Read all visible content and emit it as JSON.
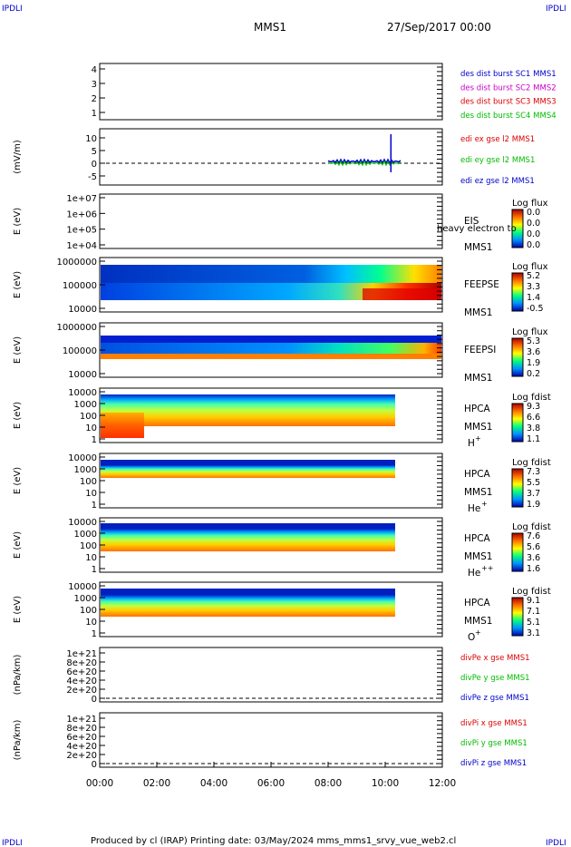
{
  "corner_marks": {
    "tl": "IPDLI",
    "tr": "IPDLI",
    "bl": "IPDLI",
    "br": "IPDLI"
  },
  "header": {
    "spacecraft": "MMS1",
    "datetime": "27/Sep/2017 00:00"
  },
  "footer": {
    "text": "Produced by cl (IRAP)   Printing date: 03/May/2024   mms_mms1_srvy_vue_web2.cl"
  },
  "colors": {
    "blue": "#0000cc",
    "magenta": "#cc00cc",
    "red": "#dd0000",
    "green": "#00bb00"
  },
  "chart_data": [
    {
      "type": "line",
      "panel": "des",
      "ylim": [
        0.5,
        4.5
      ],
      "yticks": [
        "1",
        "2",
        "3",
        "4"
      ],
      "legend": [
        {
          "text": "des dist burst SC1 MMS1",
          "color": "blue"
        },
        {
          "text": "des dist burst SC2 MMS2",
          "color": "magenta"
        },
        {
          "text": "des dist burst SC3 MMS3",
          "color": "red"
        },
        {
          "text": "des dist burst SC4 MMS4",
          "color": "green"
        }
      ]
    },
    {
      "type": "line",
      "panel": "edi",
      "ylabel": "(mV/m)",
      "ylim": [
        -7,
        13
      ],
      "yticks": [
        "10",
        "5",
        "0",
        "-5"
      ],
      "legend": [
        {
          "text": "edi ex gse l2 MMS1",
          "color": "red"
        },
        {
          "text": "edi ey gse l2 MMS1",
          "color": "green"
        },
        {
          "text": "edi ez gse l2 MMS1",
          "color": "blue"
        }
      ],
      "data_span_hours": [
        8.0,
        10.6
      ]
    },
    {
      "type": "heatmap",
      "panel": "eis",
      "ylabel": "E (eV)",
      "yticks": [
        "1e+07",
        "1e+06",
        "1e+05",
        "1e+04"
      ],
      "instrument": "EIS",
      "instrument_extra": "heavy electron to",
      "sc": "MMS1",
      "cbar_title": "Log flux",
      "cbar_ticks": [
        "0.0",
        "0.0",
        "0.0",
        "0.0"
      ]
    },
    {
      "type": "heatmap",
      "panel": "feepse",
      "ylabel": "E (eV)",
      "yticks": [
        "1000000",
        "100000",
        "10000"
      ],
      "instrument": "FEEPSE",
      "sc": "MMS1",
      "cbar_title": "Log flux",
      "cbar_ticks": [
        "5.2",
        "3.3",
        "1.4",
        "-0.5"
      ]
    },
    {
      "type": "heatmap",
      "panel": "feepsi",
      "ylabel": "E (eV)",
      "yticks": [
        "1000000",
        "100000",
        "10000"
      ],
      "instrument": "FEEPSI",
      "sc": "MMS1",
      "cbar_title": "Log flux",
      "cbar_ticks": [
        "5.3",
        "3.6",
        "1.9",
        "0.2"
      ]
    },
    {
      "type": "heatmap",
      "panel": "hpca_h",
      "ylabel": "E (eV)",
      "yticks": [
        "10000",
        "1000",
        "100",
        "10",
        "1"
      ],
      "instrument": "HPCA",
      "sc": "MMS1",
      "species": "H",
      "charge": "+",
      "cbar_title": "Log fdist",
      "cbar_ticks": [
        "9.3",
        "6.6",
        "3.8",
        "1.1"
      ],
      "data_span_hours": [
        0,
        10.4
      ]
    },
    {
      "type": "heatmap",
      "panel": "hpca_he",
      "ylabel": "E (eV)",
      "yticks": [
        "10000",
        "1000",
        "100",
        "10",
        "1"
      ],
      "instrument": "HPCA",
      "sc": "MMS1",
      "species": "He",
      "charge": "+",
      "cbar_title": "Log fdist",
      "cbar_ticks": [
        "7.3",
        "5.5",
        "3.7",
        "1.9"
      ],
      "data_span_hours": [
        0,
        10.4
      ]
    },
    {
      "type": "heatmap",
      "panel": "hpca_hepp",
      "ylabel": "E (eV)",
      "yticks": [
        "10000",
        "1000",
        "100",
        "10",
        "1"
      ],
      "instrument": "HPCA",
      "sc": "MMS1",
      "species": "He",
      "charge": "++",
      "cbar_title": "Log fdist",
      "cbar_ticks": [
        "7.6",
        "5.6",
        "3.6",
        "1.6"
      ],
      "data_span_hours": [
        0,
        10.4
      ]
    },
    {
      "type": "heatmap",
      "panel": "hpca_o",
      "ylabel": "E (eV)",
      "yticks": [
        "10000",
        "1000",
        "100",
        "10",
        "1"
      ],
      "instrument": "HPCA",
      "sc": "MMS1",
      "species": "O",
      "charge": "+",
      "cbar_title": "Log fdist",
      "cbar_ticks": [
        "9.1",
        "7.1",
        "5.1",
        "3.1"
      ],
      "data_span_hours": [
        0,
        10.4
      ]
    },
    {
      "type": "line",
      "panel": "divpe",
      "ylabel": "(nPa/km)",
      "yticks": [
        "1e+21",
        "8e+20",
        "6e+20",
        "4e+20",
        "2e+20",
        "0"
      ],
      "legend": [
        {
          "text": "divPe x gse MMS1",
          "color": "red"
        },
        {
          "text": "divPe y gse MMS1",
          "color": "green"
        },
        {
          "text": "divPe z gse MMS1",
          "color": "blue"
        }
      ]
    },
    {
      "type": "line",
      "panel": "divpi",
      "ylabel": "(nPa/km)",
      "yticks": [
        "1e+21",
        "8e+20",
        "6e+20",
        "4e+20",
        "2e+20",
        "0"
      ],
      "legend": [
        {
          "text": "divPi x gse MMS1",
          "color": "red"
        },
        {
          "text": "divPi y gse MMS1",
          "color": "green"
        },
        {
          "text": "divPi z gse MMS1",
          "color": "blue"
        }
      ]
    }
  ],
  "xaxis": {
    "ticks": [
      "00:00",
      "02:00",
      "04:00",
      "06:00",
      "08:00",
      "10:00",
      "12:00"
    ],
    "range_hours": [
      0,
      12
    ]
  }
}
